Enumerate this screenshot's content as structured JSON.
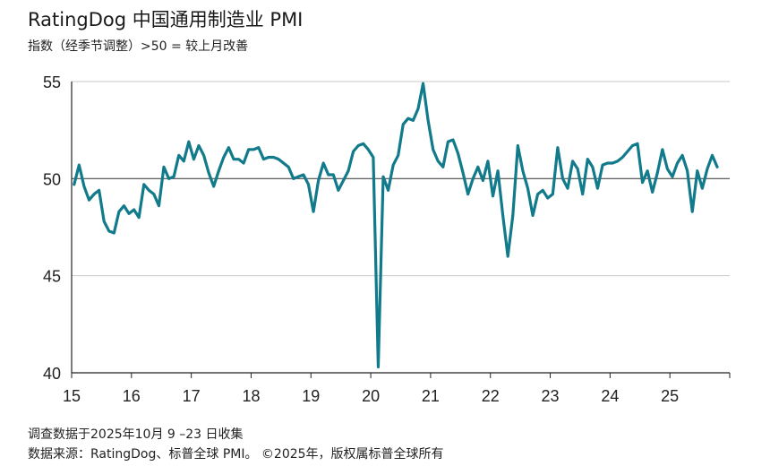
{
  "title": "RatingDog 中国通用制造业 PMI",
  "subtitle": "指数（经季节调整）>50 = 较上月改善",
  "footnotes": {
    "survey_date": "调查数据于2025年10月 9 –23 日收集",
    "source": "数据来源：RatingDog、标普全球 PMI。 ©2025年，版权属标普全球所有"
  },
  "chart_data": {
    "type": "line",
    "title": "RatingDog 中国通用制造业 PMI",
    "subtitle": "指数（经季节调整）>50 = 较上月改善",
    "xlabel": "",
    "ylabel": "",
    "ylim": [
      40,
      55
    ],
    "yticks": [
      40,
      45,
      50,
      55
    ],
    "xtick_labels": [
      "15",
      "16",
      "17",
      "18",
      "19",
      "20",
      "21",
      "22",
      "23",
      "24",
      "25"
    ],
    "reference_line": 50,
    "grid": "horizontal",
    "line_color": "#117a8b",
    "series": [
      {
        "x_start": "2015-01",
        "frequency": "monthly",
        "values": [
          49.7,
          50.7,
          49.6,
          48.9,
          49.2,
          49.4,
          47.8,
          47.3,
          47.2,
          48.3,
          48.6,
          48.2,
          48.4,
          48.0,
          49.7,
          49.4,
          49.2,
          48.6,
          50.6,
          50.0,
          50.1,
          51.2,
          50.9,
          51.9,
          51.0,
          51.7,
          51.2,
          50.3,
          49.6,
          50.4,
          51.1,
          51.6,
          51.0,
          51.0,
          50.8,
          51.5,
          51.5,
          51.6,
          51.0,
          51.1,
          51.1,
          51.0,
          50.8,
          50.6,
          50.0,
          50.1,
          50.2,
          49.7,
          48.3,
          49.9,
          50.8,
          50.2,
          50.2,
          49.4,
          49.9,
          50.4,
          51.4,
          51.7,
          51.8,
          51.5,
          51.1,
          40.3,
          50.1,
          49.4,
          50.7,
          51.2,
          52.8,
          53.1,
          53.0,
          53.6,
          54.9,
          53.0,
          51.5,
          50.9,
          50.6,
          51.9,
          52.0,
          51.3,
          50.3,
          49.2,
          50.0,
          50.6,
          49.9,
          50.9,
          49.1,
          50.4,
          48.1,
          46.0,
          48.1,
          51.7,
          50.4,
          49.5,
          48.1,
          49.2,
          49.4,
          49.0,
          49.2,
          51.6,
          50.0,
          49.5,
          50.9,
          50.5,
          49.2,
          51.0,
          50.6,
          49.5,
          50.7,
          50.8,
          50.8,
          50.9,
          51.1,
          51.4,
          51.7,
          51.8,
          49.8,
          50.4,
          49.3,
          50.3,
          51.5,
          50.5,
          50.1,
          50.8,
          51.2,
          50.4,
          48.3,
          50.4,
          49.5,
          50.5,
          51.2,
          50.6
        ]
      }
    ]
  }
}
